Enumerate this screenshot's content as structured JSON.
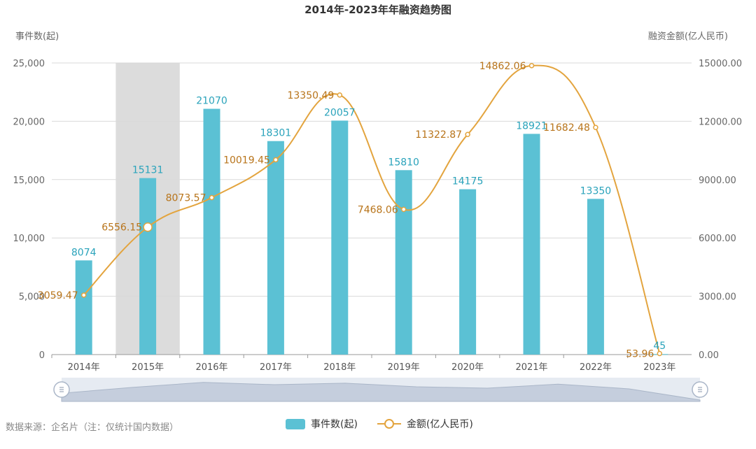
{
  "chart_data": {
    "type": "bar",
    "title": "2014年-2023年年融资趋势图",
    "categories": [
      "2014年",
      "2015年",
      "2016年",
      "2017年",
      "2018年",
      "2019年",
      "2020年",
      "2021年",
      "2022年",
      "2023年"
    ],
    "series": [
      {
        "name": "事件数(起)",
        "type": "bar",
        "axis": "left",
        "values": [
          8074,
          15131,
          21070,
          18301,
          20057,
          15810,
          14175,
          18921,
          13350,
          45
        ]
      },
      {
        "name": "金额(亿人民币)",
        "type": "line",
        "axis": "right",
        "values": [
          3059.47,
          6556.15,
          8073.57,
          10019.45,
          13350.49,
          7468.06,
          11322.87,
          14862.06,
          11682.48,
          53.96
        ]
      }
    ],
    "value_labels_bar": [
      "8074",
      "15131",
      "21070",
      "18301",
      "20057",
      "15810",
      "14175",
      "18921",
      "13350",
      "45"
    ],
    "value_labels_line": [
      "3059.47",
      "6556.15",
      "8073.57",
      "10019.45",
      "13350.49",
      "7468.06",
      "11322.87",
      "14862.06",
      "11682.48",
      "53.96"
    ],
    "ylabel_left": "事件数(起)",
    "ylabel_right": "融资金额(亿人民币)",
    "ylim_left": [
      0,
      25000
    ],
    "ylim_right": [
      0,
      15000
    ],
    "yticks_left": [
      "0",
      "5,000",
      "10,000",
      "15,000",
      "20,000",
      "25,000"
    ],
    "yticks_right": [
      "0.00",
      "3000.00",
      "6000.00",
      "9000.00",
      "12000.00",
      "15000.00"
    ],
    "highlighted_category": "2015年",
    "grid": true,
    "legend_position": "bottom-center",
    "colors": {
      "bar": "#5bc1d4",
      "line": "#e3a43e",
      "line_label": "#b8741a",
      "bar_label": "#2aa3bb"
    }
  },
  "legend": {
    "bar_label": "事件数(起)",
    "line_label": "金额(亿人民币)"
  },
  "source_text": "数据来源：企名片（注：仅统计国内数据）"
}
